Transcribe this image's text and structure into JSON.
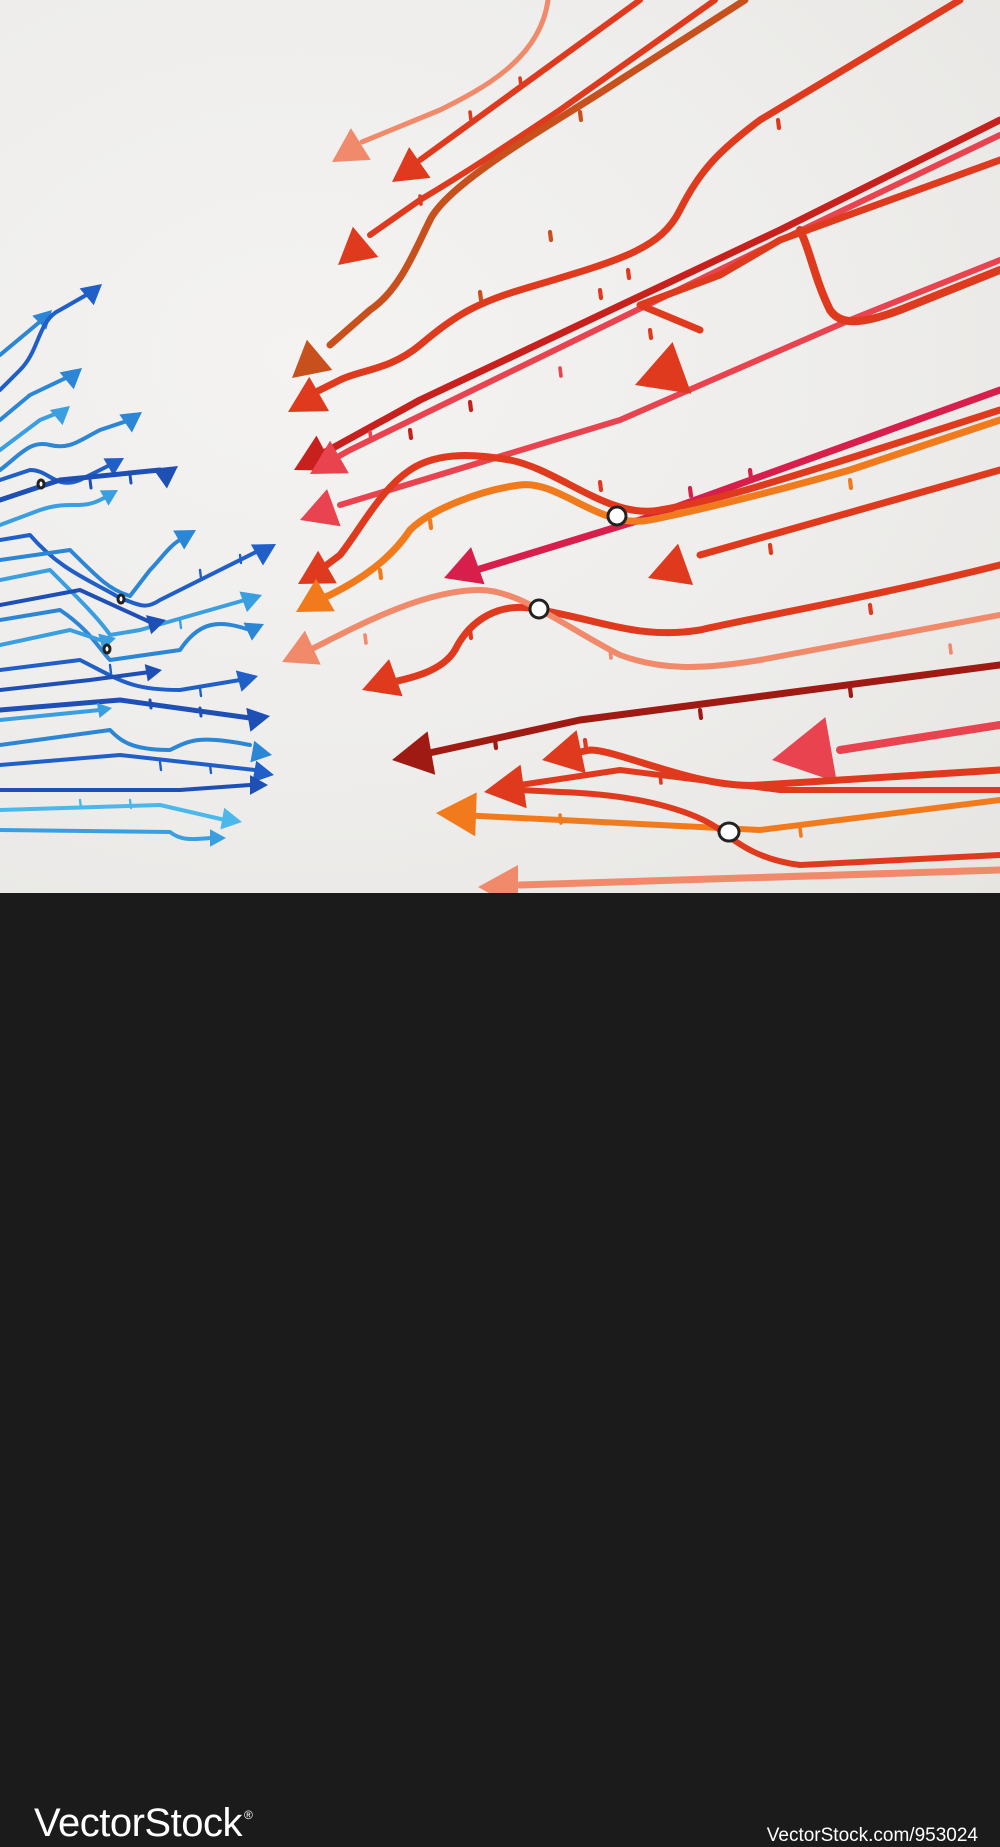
{
  "footer": {
    "brand": "VectorStock",
    "reg_mark": "®",
    "credit": "VectorStock.com/953024"
  },
  "colors": {
    "background": "#efeeec",
    "footer": "#1b1b1b",
    "blue_family": [
      "#1f5fc7",
      "#2b86d6",
      "#3a9fe0",
      "#1d4fb5",
      "#4ab8ea"
    ],
    "red_family": [
      "#e03a1e",
      "#ec5a3c",
      "#c8201c",
      "#e8434f",
      "#f07a1c",
      "#f08a6a",
      "#a01a14"
    ],
    "junction_ring": "#222222"
  },
  "icons": [
    "arrow-line-icon",
    "junction-node-icon"
  ]
}
